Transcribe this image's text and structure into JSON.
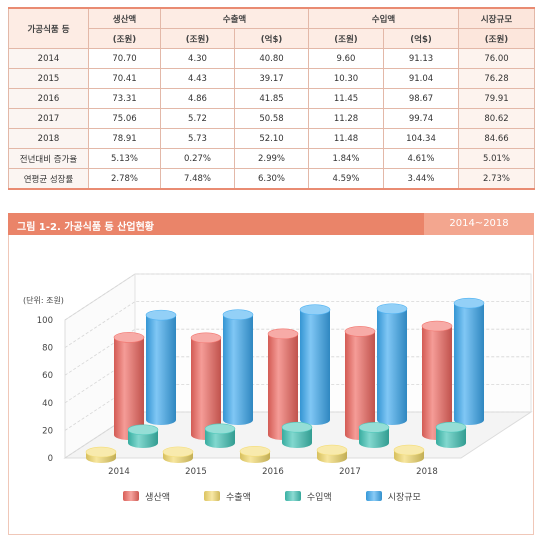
{
  "table": {
    "corner_label": "가공식품 등",
    "group_headers": [
      "생산액",
      "수출액",
      "수입액",
      "시장규모"
    ],
    "unit_headers": [
      "(조원)",
      "(조원)",
      "(억$)",
      "(조원)",
      "(억$)",
      "(조원)"
    ],
    "rows": [
      {
        "label": "2014",
        "values": [
          "70.70",
          "4.30",
          "40.80",
          "9.60",
          "91.13",
          "76.00"
        ]
      },
      {
        "label": "2015",
        "values": [
          "70.41",
          "4.43",
          "39.17",
          "10.30",
          "91.04",
          "76.28"
        ]
      },
      {
        "label": "2016",
        "values": [
          "73.31",
          "4.86",
          "41.85",
          "11.45",
          "98.67",
          "79.91"
        ]
      },
      {
        "label": "2017",
        "values": [
          "75.06",
          "5.72",
          "50.58",
          "11.28",
          "99.74",
          "80.62"
        ]
      },
      {
        "label": "2018",
        "values": [
          "78.91",
          "5.73",
          "52.10",
          "11.48",
          "104.34",
          "84.66"
        ]
      },
      {
        "label": "전년대비 증가율",
        "values": [
          "5.13%",
          "0.27%",
          "2.99%",
          "1.84%",
          "4.61%",
          "5.01%"
        ]
      },
      {
        "label": "연평균 성장률",
        "values": [
          "2.78%",
          "7.48%",
          "6.30%",
          "4.59%",
          "3.44%",
          "2.73%"
        ]
      }
    ]
  },
  "figure": {
    "title": "그림 1-2. 가공식품 등 산업현황",
    "range": "2014~2018"
  },
  "chart_data": {
    "type": "bar",
    "unit_label": "(단위: 조원)",
    "categories": [
      "2014",
      "2015",
      "2016",
      "2017",
      "2018"
    ],
    "ylim": [
      0,
      100
    ],
    "yticks": [
      0,
      20,
      40,
      60,
      80,
      100
    ],
    "grid": true,
    "legend_position": "bottom",
    "series": [
      {
        "name": "생산액",
        "values": [
          70.7,
          70.41,
          73.31,
          75.06,
          78.91
        ],
        "color": "#f0675f"
      },
      {
        "name": "수출액",
        "values": [
          4.3,
          4.43,
          4.86,
          5.72,
          5.73
        ],
        "color": "#f3d96a"
      },
      {
        "name": "수입액",
        "values": [
          9.6,
          10.3,
          11.45,
          11.28,
          11.48
        ],
        "color": "#3fc3b5"
      },
      {
        "name": "시장규모",
        "values": [
          76.0,
          76.28,
          79.91,
          80.62,
          84.66
        ],
        "color": "#3ba9f0"
      }
    ]
  }
}
